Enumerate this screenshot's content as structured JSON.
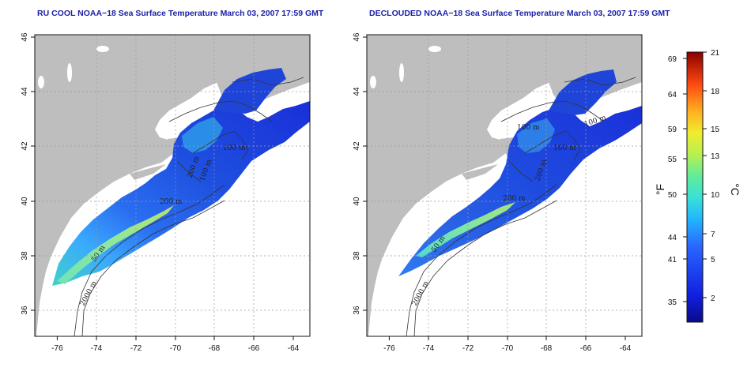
{
  "maps": [
    {
      "title": "RU COOL NOAA−18 Sea Surface Temperature March 03, 2007 17:59 GMT",
      "variant": "cloud-masked",
      "x_ticks": [
        "-76",
        "-74",
        "-72",
        "-70",
        "-68",
        "-66",
        "-64"
      ],
      "y_ticks": [
        "46",
        "44",
        "42",
        "40",
        "38",
        "36"
      ],
      "contour_labels": [
        "100 m",
        "200 m",
        "200 m",
        "100 m",
        "50 m",
        "2000 m"
      ]
    },
    {
      "title": "DECLOUDED NOAA−18 Sea Surface Temperature March 03, 2007 17:59 GMT",
      "variant": "declouded",
      "x_ticks": [
        "-76",
        "-74",
        "-72",
        "-70",
        "-68",
        "-66",
        "-64"
      ],
      "y_ticks": [
        "46",
        "44",
        "42",
        "40",
        "38",
        "36"
      ],
      "contour_labels": [
        "100 m",
        "200 m",
        "200 m",
        "100 m",
        "100 m",
        "50 m",
        "2000 m"
      ]
    }
  ],
  "extent": {
    "lon_min": -77,
    "lon_max": -63,
    "lat_min": 35,
    "lat_max": 46
  },
  "colorbar": {
    "fahrenheit_ticks": [
      "69",
      "64",
      "59",
      "55",
      "50",
      "44",
      "41",
      "35"
    ],
    "celsius_ticks": [
      "21",
      "18",
      "15",
      "13",
      "10",
      "7",
      "5",
      "2"
    ],
    "fahrenheit_unit": "°F",
    "celsius_unit": "°C"
  },
  "colors": {
    "land": "#bebebe",
    "no_data": "#ffffff",
    "title": "#1b1fa8",
    "grid": "#9a9a9a",
    "contour": "#333333"
  }
}
